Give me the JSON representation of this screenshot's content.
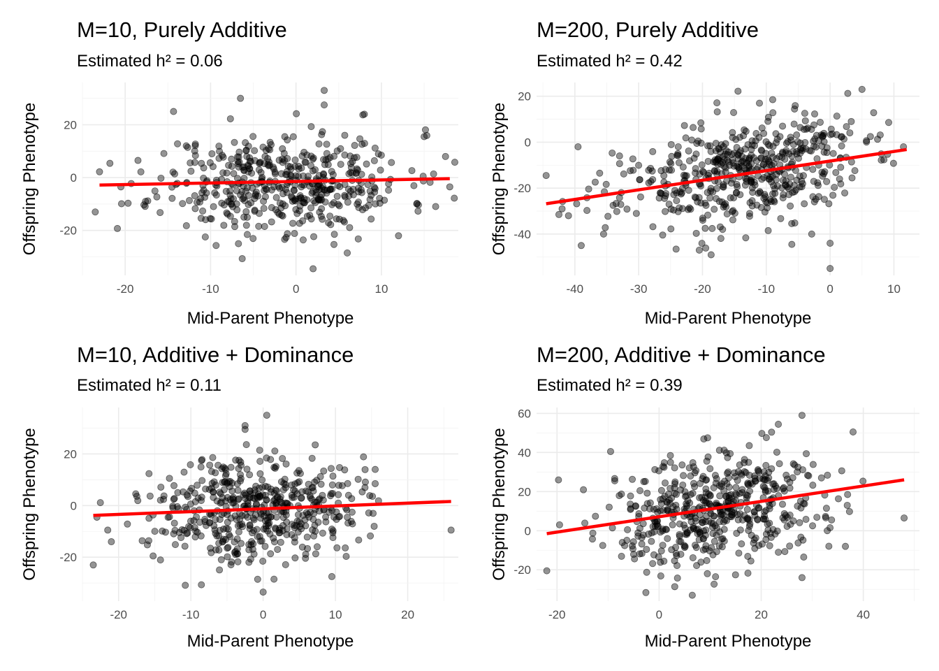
{
  "chart_data": [
    {
      "type": "scatter",
      "title": "M=10, Purely Additive",
      "subtitle": "Estimated h² = 0.06",
      "xlabel": "Mid-Parent Phenotype",
      "ylabel": "Offspring Phenotype",
      "xlim": [
        -25,
        19
      ],
      "ylim": [
        -37,
        36
      ],
      "xticks": [
        -20,
        -10,
        0,
        10
      ],
      "yticks": [
        -20,
        0,
        20
      ],
      "grid": true,
      "fit_line": {
        "x": [
          -23,
          18
        ],
        "y": [
          -2.8,
          -0.4
        ],
        "color": "#ff0000"
      },
      "point_cloud": {
        "n": 480,
        "x_center": -1.5,
        "x_sd": 7.2,
        "y_center": -1.8,
        "y_sd": 9.5,
        "slope": 0.06,
        "seed": 11
      },
      "notable_points": [
        [
          -23.5,
          -13
        ],
        [
          -23,
          2.2
        ],
        [
          -20.5,
          -3.5
        ],
        [
          -18.5,
          6.5
        ],
        [
          3.3,
          33
        ],
        [
          -6.5,
          30
        ],
        [
          3.3,
          27.5
        ],
        [
          2,
          -34.5
        ],
        [
          6,
          -28.5
        ],
        [
          12,
          -22
        ],
        [
          17.5,
          8
        ],
        [
          18,
          -3.5
        ],
        [
          15,
          15.5
        ],
        [
          8,
          24
        ]
      ]
    },
    {
      "type": "scatter",
      "title": "M=200, Purely Additive",
      "subtitle": "Estimated h² = 0.42",
      "xlabel": "Mid-Parent Phenotype",
      "ylabel": "Offspring Phenotype",
      "xlim": [
        -46,
        14
      ],
      "ylim": [
        -58,
        26
      ],
      "xticks": [
        -40,
        -30,
        -20,
        -10,
        0,
        10
      ],
      "yticks": [
        -40,
        -20,
        0,
        20
      ],
      "grid": true,
      "fit_line": {
        "x": [
          -44.5,
          12
        ],
        "y": [
          -26.8,
          -3.2
        ],
        "color": "#ff0000"
      },
      "point_cloud": {
        "n": 520,
        "x_center": -14,
        "x_sd": 9.5,
        "y_center": -13,
        "y_sd": 11.5,
        "slope": 0.42,
        "seed": 23
      },
      "notable_points": [
        [
          -44.5,
          -14.5
        ],
        [
          -42.5,
          -31.5
        ],
        [
          -42,
          -29
        ],
        [
          -41,
          -32
        ],
        [
          -39.5,
          -2
        ],
        [
          -39,
          -45
        ],
        [
          -35.5,
          -40
        ],
        [
          -33,
          -6
        ],
        [
          0,
          -55
        ],
        [
          5,
          23
        ],
        [
          11.5,
          -2
        ],
        [
          0,
          -44
        ],
        [
          -6,
          -44.5
        ],
        [
          -20.5,
          -47
        ]
      ]
    },
    {
      "type": "scatter",
      "title": "M=10, Additive + Dominance",
      "subtitle": "Estimated h² = 0.11",
      "xlabel": "Mid-Parent Phenotype",
      "ylabel": "Offspring Phenotype",
      "xlim": [
        -25,
        27
      ],
      "ylim": [
        -37,
        38
      ],
      "xticks": [
        -20,
        -10,
        0,
        10,
        20
      ],
      "yticks": [
        -20,
        0,
        20
      ],
      "grid": true,
      "fit_line": {
        "x": [
          -23.5,
          26
        ],
        "y": [
          -3.8,
          1.6
        ],
        "color": "#ff0000"
      },
      "point_cloud": {
        "n": 500,
        "x_center": -0.8,
        "x_sd": 7.0,
        "y_center": -0.5,
        "y_sd": 10.0,
        "slope": 0.11,
        "seed": 37
      },
      "notable_points": [
        [
          -23.5,
          -23
        ],
        [
          -23,
          -4.5
        ],
        [
          -21.5,
          -9.5
        ],
        [
          -21,
          -14
        ],
        [
          26,
          -9.5
        ],
        [
          0.5,
          35
        ],
        [
          -2.5,
          31
        ],
        [
          -2.5,
          29.5
        ],
        [
          0,
          -33.5
        ],
        [
          1.5,
          -28.5
        ],
        [
          9.5,
          -27.5
        ],
        [
          15.5,
          14
        ],
        [
          15.5,
          8.5
        ]
      ]
    },
    {
      "type": "scatter",
      "title": "M=200, Additive + Dominance",
      "subtitle": "Estimated h² = 0.39",
      "xlabel": "Mid-Parent Phenotype",
      "ylabel": "Offspring Phenotype",
      "xlim": [
        -24,
        51
      ],
      "ylim": [
        -36,
        63
      ],
      "xticks": [
        -20,
        0,
        20,
        40
      ],
      "yticks": [
        -20,
        0,
        20,
        40,
        60
      ],
      "grid": true,
      "fit_line": {
        "x": [
          -22,
          48
        ],
        "y": [
          -1.5,
          26
        ],
        "color": "#ff0000"
      },
      "point_cloud": {
        "n": 520,
        "x_center": 12,
        "x_sd": 10.5,
        "y_center": 10,
        "y_sd": 14.5,
        "slope": 0.39,
        "seed": 51
      },
      "notable_points": [
        [
          -22,
          -20.5
        ],
        [
          -19.5,
          3
        ],
        [
          48,
          6.5
        ],
        [
          28,
          59
        ],
        [
          6.5,
          -33
        ],
        [
          9.5,
          47.5
        ],
        [
          38,
          50.5
        ],
        [
          -9.5,
          40.5
        ],
        [
          36.5,
          -8
        ],
        [
          28,
          -24
        ]
      ]
    }
  ]
}
